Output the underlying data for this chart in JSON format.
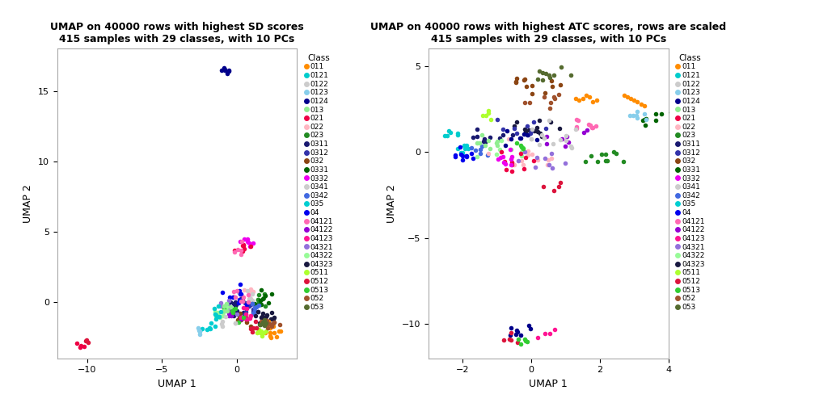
{
  "title1": "UMAP on 40000 rows with highest SD scores\n415 samples with 29 classes, with 10 PCs",
  "title2": "UMAP on 40000 rows with highest ATC scores, rows are scaled\n415 samples with 29 classes, with 10 PCs",
  "xlabel": "UMAP 1",
  "ylabel": "UMAP 2",
  "legend_title": "Class",
  "classes": [
    "011",
    "0121",
    "0122",
    "0123",
    "0124",
    "013",
    "021",
    "022",
    "023",
    "0311",
    "0312",
    "032",
    "0331",
    "0332",
    "0341",
    "0342",
    "035",
    "04",
    "04121",
    "04122",
    "04123",
    "04321",
    "04322",
    "04323",
    "0511",
    "0512",
    "0513",
    "052",
    "053"
  ],
  "color_map": {
    "011": "#FF8C00",
    "0121": "#00CCCC",
    "0122": "#CCCCCC",
    "0123": "#87CEEB",
    "0124": "#00008B",
    "013": "#90EE90",
    "021": "#EE0044",
    "022": "#FFB6C1",
    "023": "#228B22",
    "0311": "#191970",
    "0312": "#3333AA",
    "032": "#8B4513",
    "0331": "#006400",
    "0332": "#EE00EE",
    "0341": "#CCCCCC",
    "0342": "#4169E1",
    "035": "#00CED1",
    "04": "#0000EE",
    "04121": "#FF69B4",
    "04122": "#9400D3",
    "04123": "#FF1493",
    "04321": "#9370DB",
    "04322": "#98FB98",
    "04323": "#191940",
    "0511": "#ADFF2F",
    "0512": "#DC143C",
    "0513": "#32CD32",
    "052": "#A0522D",
    "053": "#556B2F"
  },
  "plot1_xlim": [
    -12,
    4
  ],
  "plot1_ylim": [
    -4,
    18
  ],
  "plot1_xticks": [
    -10,
    -5,
    0
  ],
  "plot1_yticks": [
    0,
    5,
    10,
    15
  ],
  "plot2_xlim": [
    -3,
    4
  ],
  "plot2_ylim": [
    -12,
    6
  ],
  "plot2_xticks": [
    -2,
    0,
    2,
    4
  ],
  "plot2_yticks": [
    -10,
    -5,
    0,
    5
  ]
}
